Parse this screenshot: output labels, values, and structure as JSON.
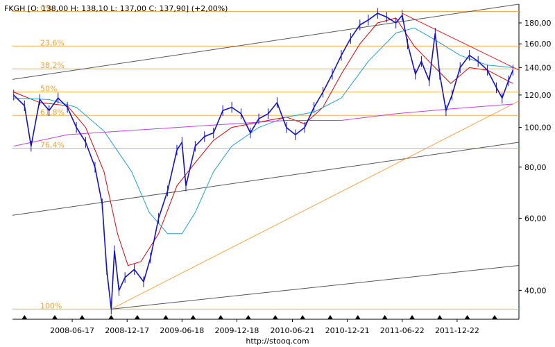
{
  "chart_data": {
    "type": "line",
    "title": "FKGH [O: 138,00  H: 138,10  L: 137,00  C: 137,90] (+2,00%)",
    "source": "http://stooq.com",
    "xlabel": "",
    "ylabel": "",
    "y_scale": "log",
    "ylim": [
      34,
      200
    ],
    "xlim": [
      "2007-12-01",
      "2012-07-15"
    ],
    "y_ticks": [
      {
        "value": 40,
        "label": "40,00"
      },
      {
        "value": 60,
        "label": "60,00"
      },
      {
        "value": 80,
        "label": "80,00"
      },
      {
        "value": 100,
        "label": "100,00"
      },
      {
        "value": 120,
        "label": "120,00"
      },
      {
        "value": 140,
        "label": "140,00"
      },
      {
        "value": 160,
        "label": "160,00"
      },
      {
        "value": 180,
        "label": "180,00"
      }
    ],
    "x_ticks": [
      {
        "date": "2008-06-17",
        "label": "2008-06-17"
      },
      {
        "date": "2008-12-17",
        "label": "2008-12-17"
      },
      {
        "date": "2009-06-18",
        "label": "2009-06-18"
      },
      {
        "date": "2009-12-18",
        "label": "2009-12-18"
      },
      {
        "date": "2010-06-21",
        "label": "2010-06-21"
      },
      {
        "date": "2010-12-21",
        "label": "2010-12-21"
      },
      {
        "date": "2011-06-22",
        "label": "2011-06-22"
      },
      {
        "date": "2011-12-22",
        "label": "2011-12-22"
      }
    ],
    "fibonacci_levels": [
      {
        "label": "0%",
        "value": 192
      },
      {
        "label": "23,6%",
        "value": 158
      },
      {
        "label": "38,2%",
        "value": 139
      },
      {
        "label": "50%",
        "value": 122
      },
      {
        "label": "61,8%",
        "value": 107
      },
      {
        "label": "76,4%",
        "value": 89
      },
      {
        "label": "100%",
        "value": 36
      }
    ],
    "price_series": {
      "name": "FKGH",
      "color": "#1010cc",
      "points": [
        [
          "2007-12-05",
          120
        ],
        [
          "2008-01-10",
          113
        ],
        [
          "2008-02-01",
          90
        ],
        [
          "2008-03-01",
          117
        ],
        [
          "2008-04-01",
          110
        ],
        [
          "2008-05-01",
          118
        ],
        [
          "2008-06-01",
          112
        ],
        [
          "2008-07-01",
          100
        ],
        [
          "2008-08-01",
          92
        ],
        [
          "2008-09-01",
          80
        ],
        [
          "2008-09-25",
          65
        ],
        [
          "2008-10-10",
          45
        ],
        [
          "2008-10-25",
          36
        ],
        [
          "2008-11-05",
          50
        ],
        [
          "2008-11-20",
          40
        ],
        [
          "2008-12-10",
          43
        ],
        [
          "2009-01-10",
          45
        ],
        [
          "2009-02-10",
          42
        ],
        [
          "2009-03-05",
          48
        ],
        [
          "2009-04-01",
          60
        ],
        [
          "2009-05-01",
          70
        ],
        [
          "2009-06-01",
          88
        ],
        [
          "2009-06-18",
          92
        ],
        [
          "2009-07-01",
          72
        ],
        [
          "2009-08-01",
          90
        ],
        [
          "2009-09-01",
          95
        ],
        [
          "2009-10-01",
          97
        ],
        [
          "2009-11-01",
          110
        ],
        [
          "2009-12-01",
          112
        ],
        [
          "2010-01-01",
          108
        ],
        [
          "2010-02-01",
          97
        ],
        [
          "2010-03-01",
          105
        ],
        [
          "2010-04-01",
          108
        ],
        [
          "2010-05-01",
          115
        ],
        [
          "2010-06-01",
          100
        ],
        [
          "2010-07-01",
          96
        ],
        [
          "2010-08-01",
          100
        ],
        [
          "2010-09-01",
          112
        ],
        [
          "2010-10-01",
          122
        ],
        [
          "2010-11-01",
          135
        ],
        [
          "2010-12-01",
          150
        ],
        [
          "2011-01-01",
          165
        ],
        [
          "2011-02-01",
          178
        ],
        [
          "2011-03-01",
          183
        ],
        [
          "2011-04-01",
          190
        ],
        [
          "2011-05-01",
          186
        ],
        [
          "2011-06-01",
          180
        ],
        [
          "2011-06-22",
          188
        ],
        [
          "2011-07-10",
          160
        ],
        [
          "2011-08-05",
          135
        ],
        [
          "2011-08-25",
          145
        ],
        [
          "2011-09-20",
          130
        ],
        [
          "2011-10-10",
          170
        ],
        [
          "2011-10-25",
          135
        ],
        [
          "2011-11-15",
          110
        ],
        [
          "2011-12-05",
          120
        ],
        [
          "2012-01-01",
          140
        ],
        [
          "2012-02-01",
          150
        ],
        [
          "2012-03-01",
          145
        ],
        [
          "2012-04-01",
          138
        ],
        [
          "2012-05-01",
          125
        ],
        [
          "2012-05-20",
          118
        ],
        [
          "2012-06-10",
          130
        ],
        [
          "2012-06-25",
          138
        ]
      ]
    },
    "moving_averages": [
      {
        "color": "#dd0000",
        "points": [
          [
            "2007-12-05",
            122
          ],
          [
            "2008-03-01",
            115
          ],
          [
            "2008-06-01",
            113
          ],
          [
            "2008-08-01",
            100
          ],
          [
            "2008-10-01",
            78
          ],
          [
            "2008-11-15",
            55
          ],
          [
            "2008-12-20",
            46
          ],
          [
            "2009-02-01",
            47
          ],
          [
            "2009-04-01",
            55
          ],
          [
            "2009-06-01",
            72
          ],
          [
            "2009-08-01",
            82
          ],
          [
            "2009-10-01",
            93
          ],
          [
            "2009-12-01",
            100
          ],
          [
            "2010-03-01",
            103
          ],
          [
            "2010-06-01",
            106
          ],
          [
            "2010-08-01",
            102
          ],
          [
            "2010-10-01",
            112
          ],
          [
            "2010-12-01",
            135
          ],
          [
            "2011-02-01",
            160
          ],
          [
            "2011-04-01",
            180
          ],
          [
            "2011-06-01",
            185
          ],
          [
            "2011-08-01",
            158
          ],
          [
            "2011-10-01",
            142
          ],
          [
            "2011-12-01",
            128
          ],
          [
            "2012-02-01",
            140
          ],
          [
            "2012-04-01",
            138
          ],
          [
            "2012-06-25",
            128
          ]
        ]
      },
      {
        "color": "#20a0d0",
        "points": [
          [
            "2007-12-05",
            118
          ],
          [
            "2008-04-01",
            117
          ],
          [
            "2008-07-01",
            112
          ],
          [
            "2008-10-01",
            98
          ],
          [
            "2009-01-01",
            78
          ],
          [
            "2009-03-01",
            62
          ],
          [
            "2009-05-01",
            55
          ],
          [
            "2009-06-18",
            55
          ],
          [
            "2009-08-01",
            62
          ],
          [
            "2009-10-01",
            78
          ],
          [
            "2009-12-01",
            90
          ],
          [
            "2010-03-01",
            100
          ],
          [
            "2010-06-01",
            106
          ],
          [
            "2010-09-01",
            109
          ],
          [
            "2010-12-01",
            118
          ],
          [
            "2011-03-01",
            145
          ],
          [
            "2011-06-01",
            170
          ],
          [
            "2011-08-01",
            175
          ],
          [
            "2011-10-01",
            165
          ],
          [
            "2012-01-01",
            150
          ],
          [
            "2012-04-01",
            142
          ],
          [
            "2012-06-25",
            140
          ]
        ]
      },
      {
        "color": "#c040e0",
        "points": [
          [
            "2007-12-05",
            90
          ],
          [
            "2008-06-01",
            96
          ],
          [
            "2008-12-01",
            98
          ],
          [
            "2009-06-01",
            100
          ],
          [
            "2009-12-01",
            102
          ],
          [
            "2010-06-01",
            104
          ],
          [
            "2010-12-01",
            104
          ],
          [
            "2011-06-01",
            108
          ],
          [
            "2011-12-01",
            111
          ],
          [
            "2012-06-25",
            114
          ]
        ]
      }
    ],
    "trend_lines": [
      {
        "color": "#555555",
        "from": [
          "2007-12-01",
          131
        ],
        "to": [
          "2012-07-15",
          200
        ]
      },
      {
        "color": "#555555",
        "from": [
          "2007-12-01",
          61
        ],
        "to": [
          "2012-07-15",
          92
        ]
      },
      {
        "color": "#555555",
        "from": [
          "2008-10-25",
          36
        ],
        "to": [
          "2012-07-15",
          46
        ]
      },
      {
        "color": "#ffa040",
        "from": [
          "2008-10-25",
          36
        ],
        "to": [
          "2012-07-15",
          116
        ]
      },
      {
        "color": "#dd2020",
        "from": [
          "2011-06-22",
          190
        ],
        "to": [
          "2012-07-15",
          138
        ]
      }
    ],
    "grid": false
  }
}
